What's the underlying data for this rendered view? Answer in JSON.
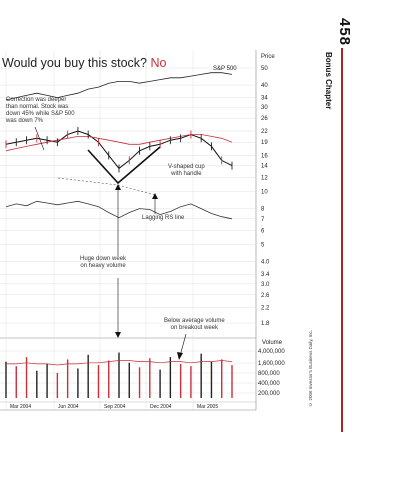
{
  "page": {
    "number": "458",
    "section": "Bonus Chapter",
    "copyright": "© 2006 Investor's Business Daily, Inc."
  },
  "colors": {
    "red": "#c8303a",
    "grid": "#d8d8d8",
    "line": "#333333",
    "text": "#222222"
  },
  "chart_data": {
    "type": "line",
    "title": "Would you buy this stock?",
    "title_answer": "No",
    "price_axis_label": "Price",
    "price_ticks": [
      "50",
      "40",
      "34",
      "30",
      "26",
      "22",
      "19",
      "16",
      "14",
      "12",
      "10",
      "8",
      "7",
      "6",
      "5",
      "4.0",
      "3.4",
      "3.0",
      "2.6",
      "2.2",
      "1.8"
    ],
    "volume_axis_label": "Volume",
    "volume_ticks": [
      "4,000,000",
      "1,600,000",
      "800,000",
      "400,000",
      "200,000"
    ],
    "x_labels": [
      "Mar 2004",
      "Jun 2004",
      "Sep 2004",
      "Dec 2004",
      "Mar 2005"
    ],
    "series": [
      {
        "name": "S&P 500",
        "values": [
          33,
          34,
          35,
          36,
          35,
          34,
          35,
          36,
          38,
          39,
          41,
          42,
          42,
          41,
          42,
          43,
          44,
          44,
          45,
          46,
          47,
          47,
          46
        ]
      },
      {
        "values": [
          18.5,
          19,
          19.5,
          20,
          19.5,
          19,
          21,
          22,
          21,
          19,
          16,
          13.5,
          15,
          17,
          18,
          18.5,
          19.5,
          20,
          21,
          20,
          18,
          15,
          14
        ]
      },
      {
        "values": [
          17,
          17.5,
          18,
          18.5,
          19,
          19.5,
          20,
          20.5,
          20.5,
          20,
          19.5,
          19,
          18.5,
          18.5,
          19,
          19.5,
          20,
          20.5,
          21,
          21,
          20.5,
          20,
          19
        ]
      },
      {
        "values": [
          8.2,
          8.5,
          8.3,
          8.8,
          8.6,
          8.4,
          8.6,
          8.8,
          8.5,
          8.2,
          7.6,
          7.1,
          7.6,
          8.0,
          7.9,
          7.4,
          7.7,
          8.2,
          8.5,
          8.0,
          7.5,
          7.2,
          7.0
        ]
      }
    ],
    "volume": [
      3.2,
      2.8,
      3.6,
      2.4,
      3.0,
      2.2,
      3.4,
      2.6,
      3.8,
      2.9,
      3.3,
      4.0,
      3.1,
      2.7,
      3.5,
      2.5,
      3.6,
      3.0,
      2.8,
      3.9,
      3.2,
      3.4,
      2.9
    ],
    "volume_ma": [
      3.0,
      3.0,
      3.1,
      3.0,
      3.0,
      2.9,
      3.0,
      3.0,
      3.1,
      3.1,
      3.2,
      3.3,
      3.3,
      3.2,
      3.2,
      3.1,
      3.2,
      3.2,
      3.1,
      3.2,
      3.2,
      3.3,
      3.2
    ],
    "annotations": {
      "correction": "Correction was deeper\nthan normal. Stock was\ndown 45% while S&P 500\nwas down 7%",
      "vcup": "V-shaped cup\nwith handle",
      "rs": "Lagging RS line",
      "downweek": "Huge down week\non heavy volume",
      "breakout": "Below average volume\non breakout week"
    }
  }
}
